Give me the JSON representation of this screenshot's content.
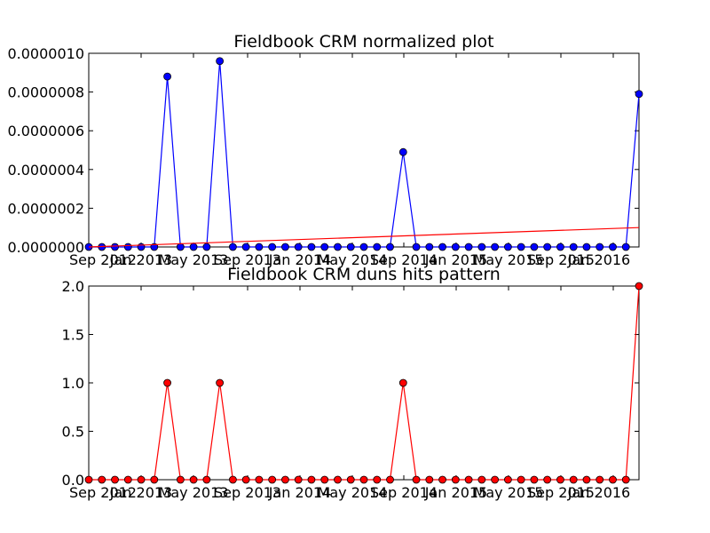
{
  "chart_data": [
    {
      "type": "line",
      "title": "Fieldbook CRM normalized plot",
      "xlabel": "",
      "ylabel": "",
      "x_tick_labels": [
        "Sep 2012",
        "Jan 2013",
        "May 2013",
        "Sep 2013",
        "Jan 2014",
        "May 2014",
        "Sep 2014",
        "Jan 2015",
        "May 2015",
        "Sep 2015",
        "Jan 2016"
      ],
      "y_tick_labels": [
        "0.0000000",
        "0.0000002",
        "0.0000004",
        "0.0000006",
        "0.0000008",
        "0.0000010"
      ],
      "ylim": [
        0,
        1e-06
      ],
      "grid": false,
      "series": [
        {
          "color": "#0000ff",
          "marker": "circle",
          "values": [
            0,
            0,
            0,
            0,
            0,
            0,
            8.8e-07,
            0,
            0,
            0,
            9.6e-07,
            0,
            0,
            0,
            0,
            0,
            0,
            0,
            0,
            0,
            0,
            0,
            0,
            0,
            4.9e-07,
            0,
            0,
            0,
            0,
            0,
            0,
            0,
            0,
            0,
            0,
            0,
            0,
            0,
            0,
            0,
            0,
            0,
            7.9e-07
          ]
        },
        {
          "color": "#ff0000",
          "marker": "none",
          "values": [
            0,
            1e-07
          ]
        }
      ]
    },
    {
      "type": "line",
      "title": "Fieldbook CRM duns hits pattern",
      "xlabel": "",
      "ylabel": "",
      "x_tick_labels": [
        "Sep 2012",
        "Jan 2013",
        "May 2013",
        "Sep 2013",
        "Jan 2014",
        "May 2014",
        "Sep 2014",
        "Jan 2015",
        "May 2015",
        "Sep 2015",
        "Jan 2016"
      ],
      "y_tick_labels": [
        "0.0",
        "0.5",
        "1.0",
        "1.5",
        "2.0"
      ],
      "ylim": [
        0,
        2
      ],
      "grid": false,
      "series": [
        {
          "color": "#ff0000",
          "marker": "circle",
          "values": [
            0,
            0,
            0,
            0,
            0,
            0,
            1,
            0,
            0,
            0,
            1,
            0,
            0,
            0,
            0,
            0,
            0,
            0,
            0,
            0,
            0,
            0,
            0,
            0,
            1,
            0,
            0,
            0,
            0,
            0,
            0,
            0,
            0,
            0,
            0,
            0,
            0,
            0,
            0,
            0,
            0,
            0,
            2
          ]
        }
      ]
    }
  ]
}
